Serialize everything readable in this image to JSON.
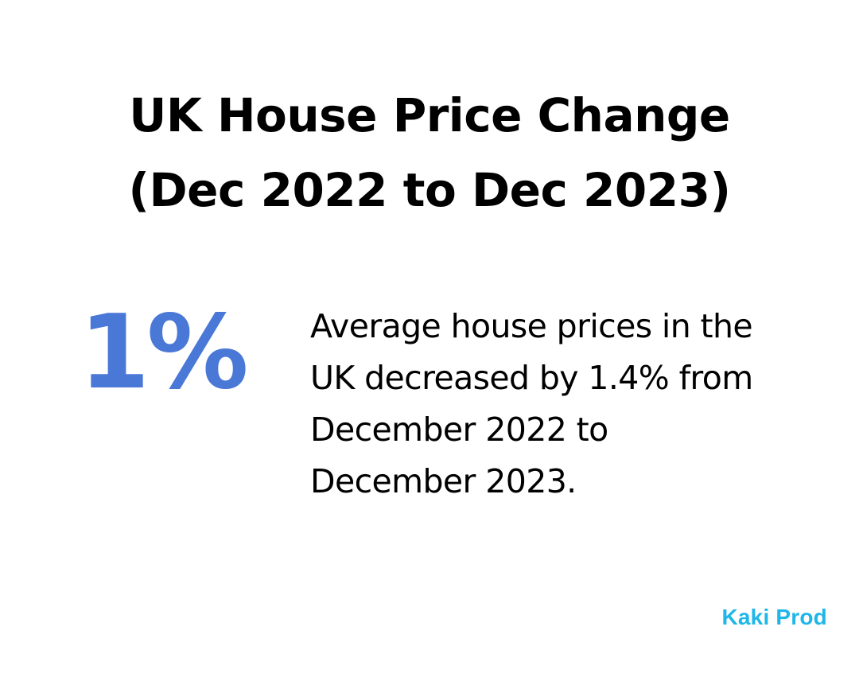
{
  "title": {
    "line1": "UK House Price Change",
    "line2": "(Dec 2022 to Dec 2023)"
  },
  "stat": {
    "value": "1%"
  },
  "description": {
    "line1": "Average house prices in the",
    "line2": "UK decreased by 1.4% from",
    "line3": "December 2022 to",
    "line4": "December 2023."
  },
  "brand": {
    "label": "Kaki Prod"
  },
  "colors": {
    "accent": "#4a78d6",
    "brand": "#1fb6e8",
    "text": "#000000",
    "background": "#ffffff"
  }
}
